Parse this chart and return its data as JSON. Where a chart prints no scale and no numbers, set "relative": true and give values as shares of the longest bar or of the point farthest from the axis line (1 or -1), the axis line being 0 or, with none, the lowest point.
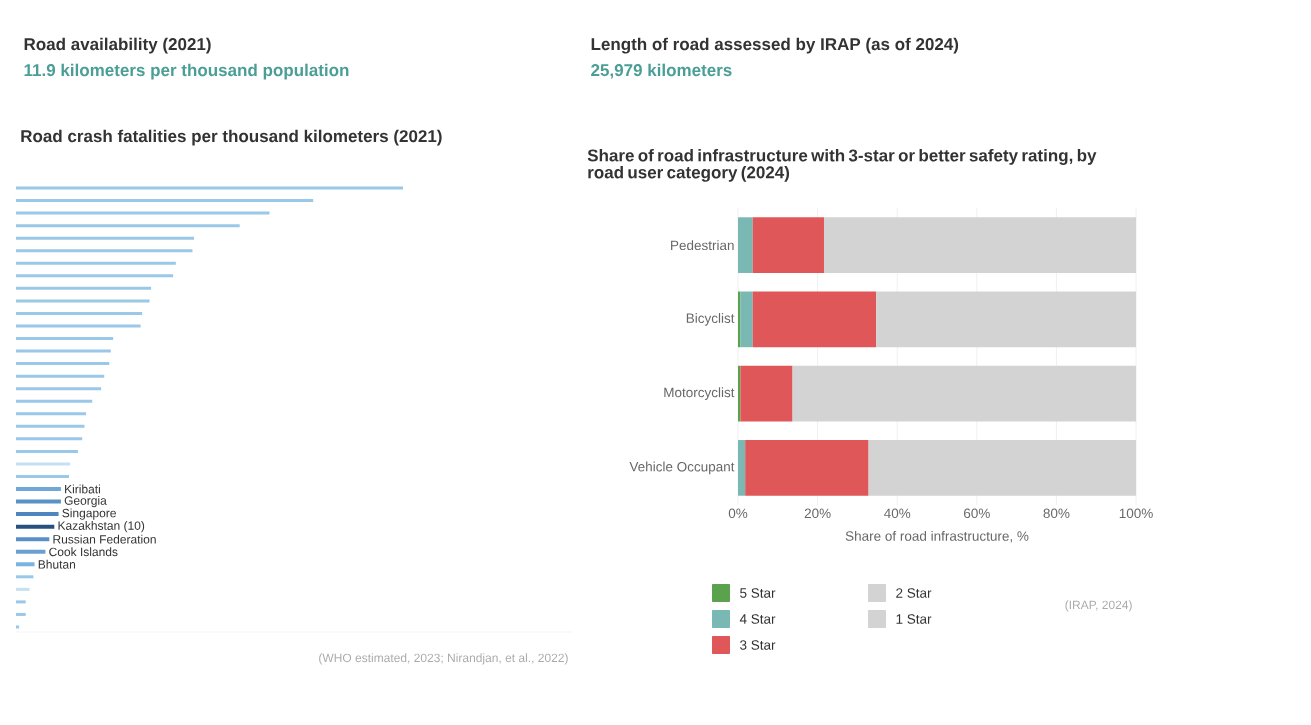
{
  "chart_data": [
    {
      "type": "other",
      "title": "Road availability (2021)",
      "subtitle": "11.9 kilometers per thousand population"
    },
    {
      "type": "other",
      "title": "Length of road assessed by IRAP (as of 2024)",
      "subtitle": "25,979 kilometers"
    },
    {
      "type": "bar",
      "orientation": "horizontal",
      "relative": true,
      "title": "Road crash fatalities per thousand kilometers (2021)",
      "categories": [
        null,
        null,
        null,
        null,
        null,
        null,
        null,
        null,
        null,
        null,
        null,
        null,
        null,
        null,
        null,
        null,
        null,
        null,
        null,
        null,
        null,
        null,
        null,
        null,
        "Kiribati",
        "Georgia",
        "Singapore",
        "Kazakhstan (10)",
        "Russian Federation",
        "Cook Islands",
        "Bhutan",
        null,
        null,
        null,
        null,
        null
      ],
      "values": [
        1.0,
        0.768,
        0.655,
        0.578,
        0.46,
        0.456,
        0.413,
        0.406,
        0.349,
        0.345,
        0.326,
        0.322,
        0.251,
        0.245,
        0.241,
        0.228,
        0.22,
        0.197,
        0.181,
        0.177,
        0.171,
        0.16,
        0.14,
        0.137,
        0.116,
        0.116,
        0.11,
        0.099,
        0.086,
        0.076,
        0.048,
        0.045,
        0.035,
        0.025,
        0.025,
        0.008
      ],
      "colors": [
        "#9ac8e8",
        "#9ac8e8",
        "#9ac8e8",
        "#9ac8e8",
        "#9ac8e8",
        "#9ac8e8",
        "#9ac8e8",
        "#9ac8e8",
        "#9ac8e8",
        "#9ac8e8",
        "#9ac8e8",
        "#9ac8e8",
        "#9ac8e8",
        "#9ac8e8",
        "#9ac8e8",
        "#9ac8e8",
        "#9ac8e8",
        "#9ac8e8",
        "#9ac8e8",
        "#9ac8e8",
        "#9ac8e8",
        "#9ac8e8",
        "#c6e0f2",
        "#9ac8e8",
        "#6fa8d6",
        "#5b91c4",
        "#4f86c0",
        "#27507f",
        "#5b8fc6",
        "#6a9fd0",
        "#7ab3df",
        "#9ac8e8",
        "#c6e0f2",
        "#9ac8e8",
        "#9ac8e8",
        "#9ac8e8"
      ],
      "annotations": [
        "(WHO estimated, 2023; Nirandjan, et al., 2022)"
      ]
    },
    {
      "type": "bar",
      "orientation": "horizontal",
      "stacked": true,
      "grid": "x",
      "legend": "bottom",
      "title": "Share of road infrastructure with 3-star or better safety rating, by road user category (2024)",
      "xlabel": "Share of road infrastructure, %",
      "categories": [
        "Pedestrian",
        "Bicyclist",
        "Motorcyclist",
        "Vehicle Occupant"
      ],
      "xlim": [
        0,
        100
      ],
      "xticks": [
        {
          "value": 0,
          "label": "0%"
        },
        {
          "value": 20,
          "label": "20%"
        },
        {
          "value": 40,
          "label": "40%"
        },
        {
          "value": 60,
          "label": "60%"
        },
        {
          "value": 80,
          "label": "80%"
        },
        {
          "value": 100,
          "label": "100%"
        }
      ],
      "series": [
        {
          "name": "5 Star",
          "color": "#5aa24e",
          "values": [
            null,
            0.6,
            0.6,
            null
          ]
        },
        {
          "name": "4 Star",
          "color": "#7ab8b3",
          "values": [
            3.7,
            3.1,
            null,
            1.8
          ]
        },
        {
          "name": "3 Star",
          "color": "#e05759",
          "values": [
            17.9,
            31.0,
            13.1,
            31.0
          ]
        },
        {
          "name": "2 Star",
          "color": "#d3d3d3",
          "values": [
            78.4,
            65.3,
            86.3,
            67.2
          ]
        },
        {
          "name": "1 Star",
          "color": "#d3d3d3",
          "values": [
            null,
            null,
            null,
            null
          ]
        }
      ],
      "annotations": [
        "(IRAP, 2024)"
      ]
    }
  ]
}
